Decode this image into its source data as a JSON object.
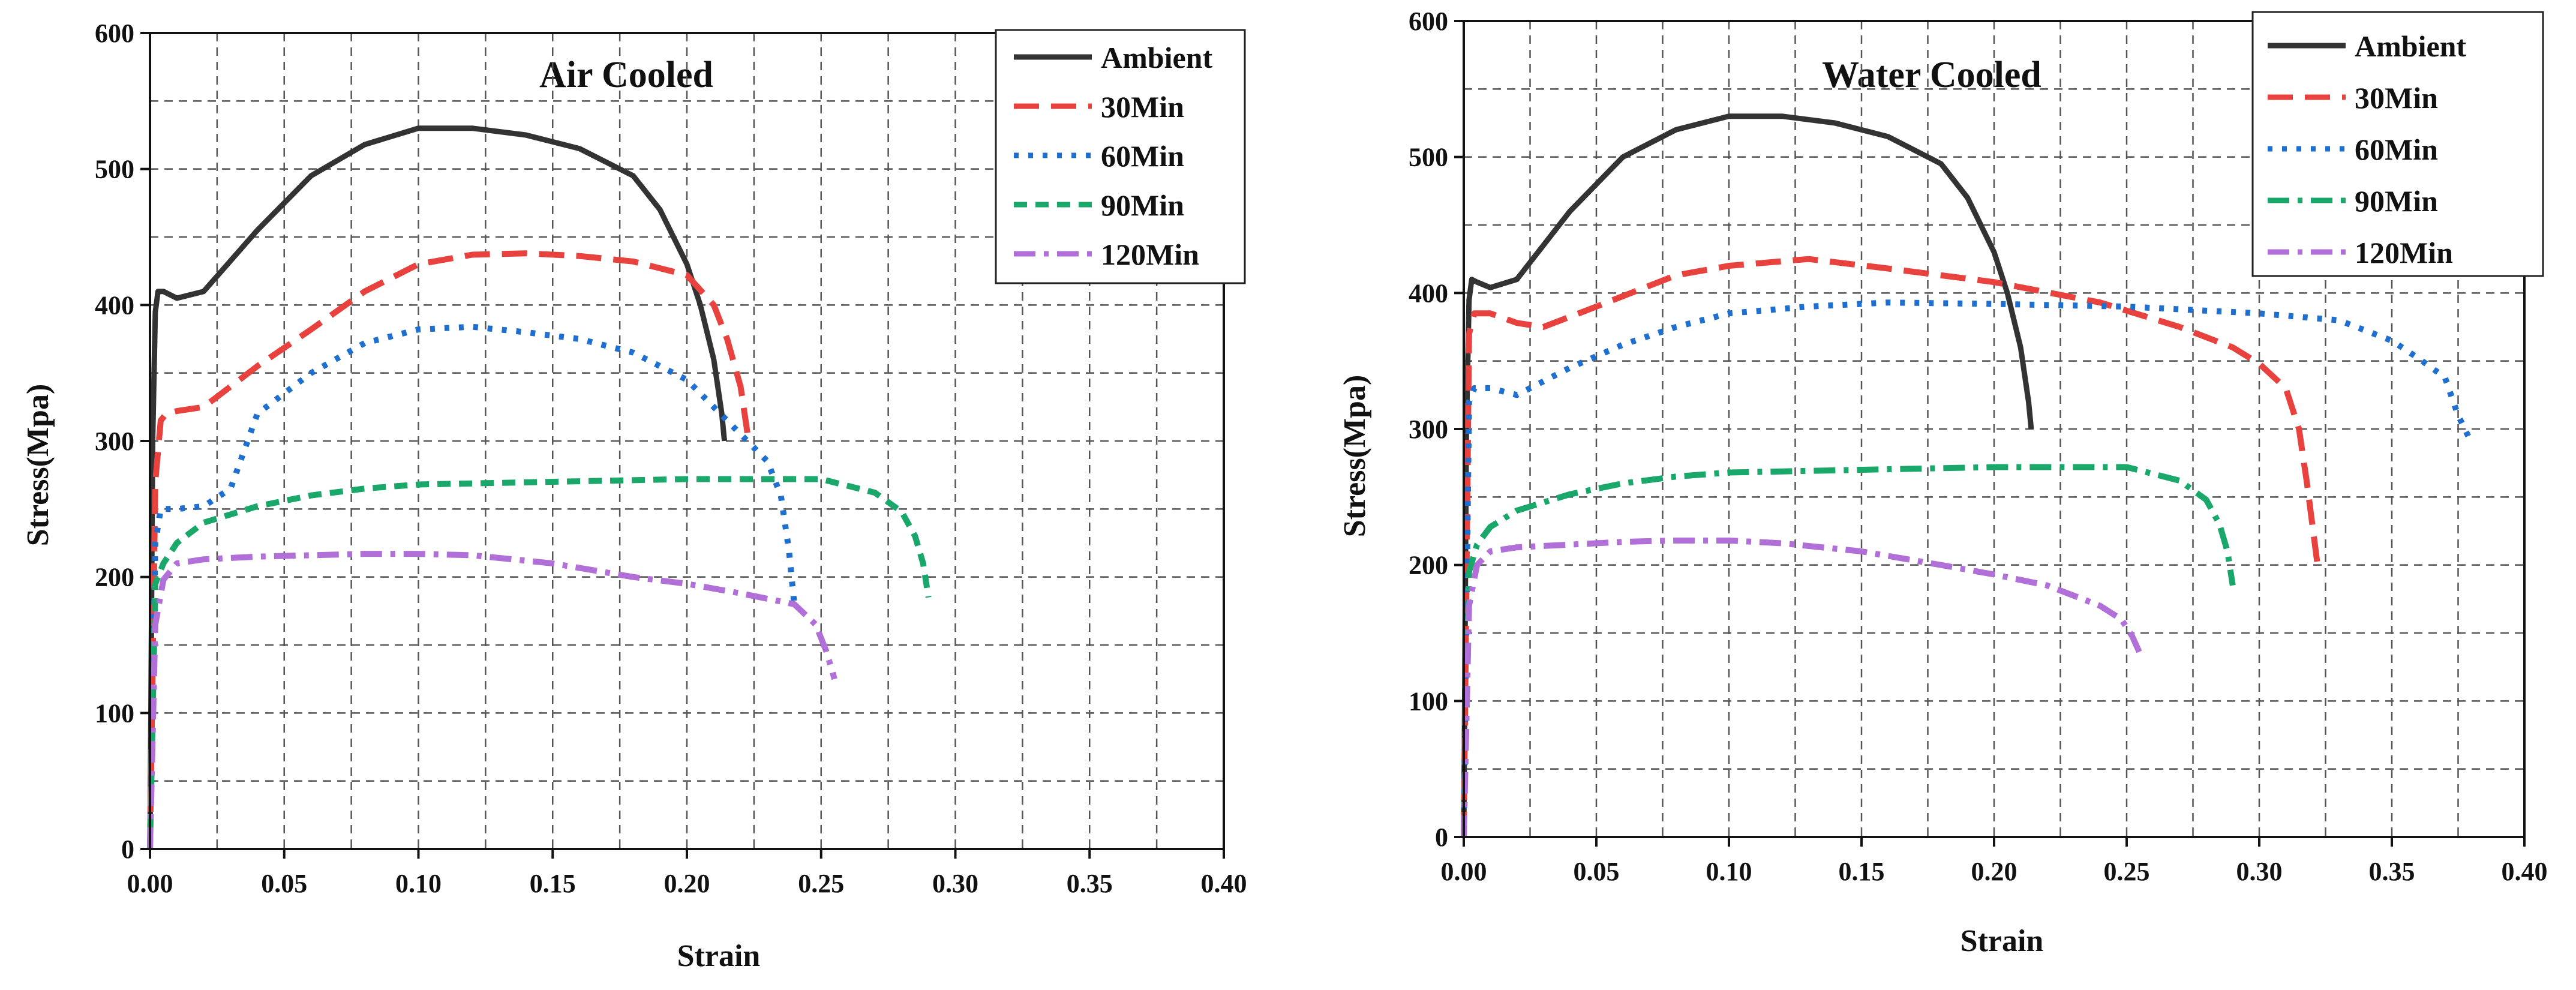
{
  "chart_data": [
    {
      "type": "line",
      "title": "Air Cooled",
      "xlabel": "Strain",
      "ylabel": "Stress(Mpa)",
      "xlim": [
        0,
        0.4
      ],
      "ylim": [
        0,
        600
      ],
      "xticks": [
        "0.00",
        "0.05",
        "0.10",
        "0.15",
        "0.20",
        "0.25",
        "0.30",
        "0.35",
        "0.40"
      ],
      "yticks": [
        "0",
        "100",
        "200",
        "300",
        "400",
        "500",
        "600"
      ],
      "grid": true,
      "legend_position": "top-right",
      "series": [
        {
          "name": "Ambient",
          "color": "#333333",
          "dash": "solid",
          "x": [
            0,
            0.001,
            0.002,
            0.003,
            0.005,
            0.01,
            0.02,
            0.04,
            0.06,
            0.08,
            0.1,
            0.12,
            0.14,
            0.16,
            0.18,
            0.19,
            0.2,
            0.205,
            0.21,
            0.213,
            0.214
          ],
          "y": [
            0,
            300,
            395,
            410,
            410,
            405,
            410,
            455,
            495,
            518,
            530,
            530,
            525,
            515,
            495,
            470,
            430,
            400,
            360,
            320,
            300
          ]
        },
        {
          "name": "30Min",
          "color": "#e8423f",
          "dash": "long-dash",
          "x": [
            0,
            0.002,
            0.004,
            0.006,
            0.01,
            0.02,
            0.04,
            0.06,
            0.08,
            0.1,
            0.12,
            0.14,
            0.16,
            0.18,
            0.2,
            0.21,
            0.215,
            0.22,
            0.223
          ],
          "y": [
            0,
            270,
            315,
            320,
            322,
            325,
            355,
            382,
            410,
            430,
            437,
            438,
            436,
            432,
            422,
            400,
            375,
            340,
            300
          ]
        },
        {
          "name": "60Min",
          "color": "#1f6fd0",
          "dash": "dotted",
          "x": [
            0,
            0.002,
            0.004,
            0.01,
            0.02,
            0.03,
            0.04,
            0.06,
            0.08,
            0.1,
            0.12,
            0.14,
            0.16,
            0.18,
            0.2,
            0.215,
            0.225,
            0.23,
            0.235,
            0.238,
            0.24
          ],
          "y": [
            0,
            225,
            250,
            250,
            252,
            265,
            320,
            350,
            372,
            382,
            384,
            380,
            375,
            365,
            345,
            315,
            295,
            285,
            260,
            220,
            180
          ]
        },
        {
          "name": "90Min",
          "color": "#1aa76a",
          "dash": "short-dash",
          "x": [
            0,
            0.002,
            0.005,
            0.01,
            0.02,
            0.04,
            0.06,
            0.08,
            0.1,
            0.15,
            0.2,
            0.25,
            0.27,
            0.28,
            0.285,
            0.288,
            0.29
          ],
          "y": [
            0,
            195,
            210,
            225,
            240,
            252,
            260,
            265,
            268,
            270,
            272,
            272,
            262,
            248,
            230,
            210,
            185
          ]
        },
        {
          "name": "120Min",
          "color": "#b070d8",
          "dash": "dash-dot",
          "x": [
            0,
            0.002,
            0.005,
            0.01,
            0.02,
            0.04,
            0.06,
            0.08,
            0.1,
            0.12,
            0.15,
            0.18,
            0.2,
            0.22,
            0.24,
            0.248,
            0.252,
            0.255
          ],
          "y": [
            0,
            165,
            198,
            210,
            213,
            215,
            216,
            217,
            217,
            216,
            210,
            200,
            195,
            188,
            180,
            165,
            145,
            125
          ]
        }
      ]
    },
    {
      "type": "line",
      "title": "Water Cooled",
      "xlabel": "Strain",
      "ylabel": "Stress(Mpa)",
      "xlim": [
        0,
        0.4
      ],
      "ylim": [
        0,
        600
      ],
      "xticks": [
        "0.00",
        "0.05",
        "0.10",
        "0.15",
        "0.20",
        "0.25",
        "0.30",
        "0.35",
        "0.40"
      ],
      "yticks": [
        "0",
        "100",
        "200",
        "300",
        "400",
        "500",
        "600"
      ],
      "grid": true,
      "legend_position": "top-right",
      "series": [
        {
          "name": "Ambient",
          "color": "#333333",
          "dash": "solid",
          "x": [
            0,
            0.001,
            0.002,
            0.003,
            0.005,
            0.01,
            0.02,
            0.04,
            0.06,
            0.08,
            0.1,
            0.12,
            0.14,
            0.16,
            0.18,
            0.19,
            0.2,
            0.205,
            0.21,
            0.213,
            0.214
          ],
          "y": [
            0,
            300,
            395,
            410,
            408,
            404,
            410,
            460,
            500,
            520,
            530,
            530,
            525,
            515,
            495,
            470,
            430,
            400,
            360,
            320,
            300
          ]
        },
        {
          "name": "30Min",
          "color": "#e8423f",
          "dash": "long-dash",
          "x": [
            0,
            0.002,
            0.004,
            0.01,
            0.02,
            0.03,
            0.05,
            0.08,
            0.1,
            0.13,
            0.16,
            0.2,
            0.24,
            0.27,
            0.29,
            0.3,
            0.31,
            0.315,
            0.318,
            0.32,
            0.322
          ],
          "y": [
            0,
            370,
            385,
            385,
            378,
            375,
            390,
            413,
            420,
            425,
            418,
            408,
            393,
            375,
            360,
            348,
            330,
            300,
            260,
            230,
            200
          ]
        },
        {
          "name": "60Min",
          "color": "#1f6fd0",
          "dash": "dotted",
          "x": [
            0,
            0.002,
            0.004,
            0.01,
            0.02,
            0.04,
            0.06,
            0.08,
            0.1,
            0.13,
            0.16,
            0.2,
            0.25,
            0.3,
            0.33,
            0.35,
            0.36,
            0.37,
            0.375,
            0.38
          ],
          "y": [
            0,
            320,
            330,
            330,
            325,
            345,
            362,
            375,
            385,
            390,
            393,
            392,
            390,
            385,
            380,
            365,
            352,
            338,
            310,
            290
          ]
        },
        {
          "name": "90Min",
          "color": "#1aa76a",
          "dash": "dash-dot",
          "x": [
            0,
            0.002,
            0.005,
            0.01,
            0.02,
            0.04,
            0.06,
            0.08,
            0.1,
            0.15,
            0.2,
            0.25,
            0.27,
            0.28,
            0.285,
            0.288,
            0.29
          ],
          "y": [
            0,
            195,
            215,
            228,
            240,
            252,
            260,
            265,
            268,
            270,
            272,
            272,
            262,
            248,
            230,
            210,
            185
          ]
        },
        {
          "name": "120Min",
          "color": "#b070d8",
          "dash": "dash-dot",
          "x": [
            0,
            0.002,
            0.005,
            0.01,
            0.02,
            0.04,
            0.06,
            0.08,
            0.1,
            0.12,
            0.15,
            0.18,
            0.2,
            0.22,
            0.24,
            0.248,
            0.252,
            0.255
          ],
          "y": [
            0,
            170,
            200,
            210,
            213,
            215,
            217,
            218,
            218,
            216,
            210,
            200,
            193,
            185,
            170,
            160,
            148,
            135
          ]
        }
      ]
    }
  ]
}
